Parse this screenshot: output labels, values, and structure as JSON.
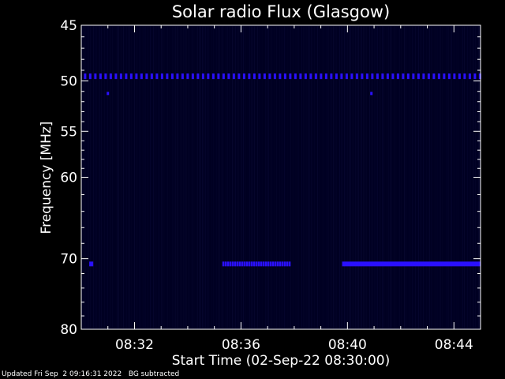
{
  "chart_data": {
    "type": "heatmap",
    "title": "Solar radio Flux (Glasgow)",
    "xlabel": "Start Time (02-Sep-22 08:30:00)",
    "ylabel": "Frequency [MHz]",
    "x_range_minutes": [
      0,
      15
    ],
    "x_ticks": [
      {
        "minute": 2,
        "label": "08:32"
      },
      {
        "minute": 6,
        "label": "08:36"
      },
      {
        "minute": 10,
        "label": "08:40"
      },
      {
        "minute": 14,
        "label": "08:44"
      }
    ],
    "y_scale": "log",
    "y_range_mhz": [
      45,
      80
    ],
    "y_ticks": [
      45,
      50,
      55,
      60,
      70,
      80
    ],
    "background_color": "#000022",
    "signal_color": "#2a10ff",
    "features": [
      {
        "kind": "band",
        "freq_mhz": 49.6,
        "start_minute": 0.1,
        "end_minute": 15,
        "pattern": "dashed"
      },
      {
        "kind": "dot",
        "freq_mhz": 51.2,
        "minute": 1.0
      },
      {
        "kind": "dot",
        "freq_mhz": 51.2,
        "minute": 10.9
      },
      {
        "kind": "band",
        "freq_mhz": 70.7,
        "start_minute": 0.3,
        "end_minute": 0.45,
        "pattern": "solid"
      },
      {
        "kind": "band",
        "freq_mhz": 70.7,
        "start_minute": 5.3,
        "end_minute": 7.8,
        "pattern": "broken"
      },
      {
        "kind": "band",
        "freq_mhz": 70.7,
        "start_minute": 9.8,
        "end_minute": 15,
        "pattern": "solid"
      }
    ]
  },
  "footer": {
    "updated": "Updated Fri Sep  2 09:16:31 2022",
    "note": "BG subtracted"
  }
}
